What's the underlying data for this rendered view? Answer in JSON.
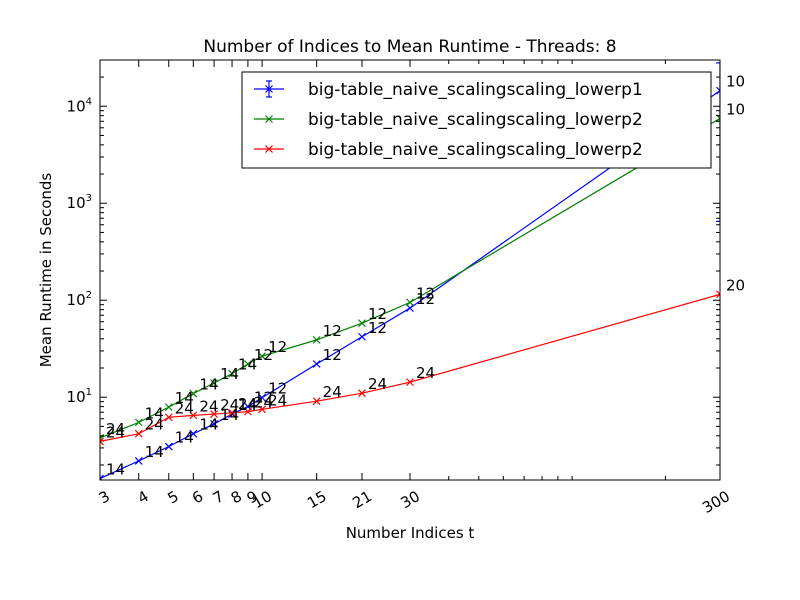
{
  "chart_data": {
    "type": "line",
    "title": "Number of Indices to Mean Runtime - Threads: 8",
    "xlabel": "Number Indices t",
    "ylabel": "Mean Runtime in Seconds",
    "x_scale": "log",
    "y_scale": "log",
    "xlim": [
      3,
      300
    ],
    "ylim": [
      1.4,
      30000
    ],
    "xticks": [
      3,
      4,
      5,
      6,
      7,
      8,
      9,
      10,
      15,
      21,
      30,
      300
    ],
    "xtick_labels": [
      "3",
      "4",
      "5",
      "6",
      "7",
      "8",
      "9",
      "10",
      "15",
      "21",
      "30",
      "300"
    ],
    "yticks": [
      10,
      100,
      1000,
      10000
    ],
    "ytick_labels": [
      [
        "10",
        "1"
      ],
      [
        "10",
        "2"
      ],
      [
        "10",
        "3"
      ],
      [
        "10",
        "4"
      ]
    ],
    "legend_position": "top-right",
    "series": [
      {
        "name": "big-table_naive_scalingscaling_lowerp1",
        "color": "#0000ff",
        "x": [
          3,
          4,
          5,
          6,
          7,
          8,
          9,
          10,
          15,
          21,
          30,
          300
        ],
        "y": [
          1.45,
          2.2,
          3.1,
          4.2,
          5.3,
          6.7,
          8.0,
          9.9,
          22,
          42,
          83,
          14500
        ],
        "point_labels": [
          "14",
          "14",
          "14",
          "14",
          "14",
          "14",
          "12",
          "12",
          "12",
          "12",
          "12",
          "10"
        ],
        "error": {
          "x": 300,
          "low": 650,
          "high": 28000
        }
      },
      {
        "name": "big-table_naive_scalingscaling_lowerp2",
        "color": "#008000",
        "x": [
          3,
          4,
          5,
          6,
          7,
          8,
          9,
          10,
          15,
          21,
          30,
          300
        ],
        "y": [
          3.8,
          5.5,
          7.9,
          10.9,
          14.0,
          17.5,
          22.0,
          26.5,
          39,
          58,
          95,
          7500
        ],
        "point_labels": [
          "24",
          "14",
          "14",
          "14",
          "14",
          "14",
          "12",
          "12",
          "12",
          "12",
          "12",
          "10"
        ]
      },
      {
        "name": "big-table_naive_scalingscaling_lowerp2",
        "color": "#ff0000",
        "x": [
          3,
          4,
          5,
          6,
          7,
          8,
          9,
          10,
          15,
          21,
          30,
          300
        ],
        "y": [
          3.5,
          4.2,
          6.2,
          6.5,
          6.7,
          6.9,
          7.1,
          7.5,
          9.1,
          11.0,
          14.3,
          115
        ],
        "point_labels": [
          "24",
          "24",
          "24",
          "24",
          "24",
          "24",
          "24",
          "24",
          "24",
          "24",
          "24",
          "20"
        ]
      }
    ]
  }
}
